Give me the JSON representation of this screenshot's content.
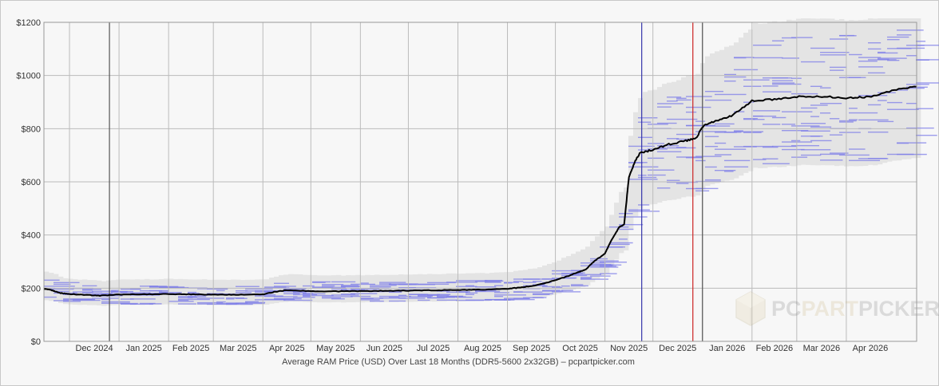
{
  "chart_data": {
    "type": "line",
    "xlabel": "Average RAM Price (USD) Over Last 18 Months (DDR5-5600 2x32GB) – pcpartpicker.com",
    "ylabel": "",
    "ylim": [
      0,
      1200
    ],
    "y_ticks": [
      0,
      200,
      400,
      600,
      800,
      1000,
      1200
    ],
    "y_tick_labels": [
      "$0",
      "$200",
      "$400",
      "$600",
      "$800",
      "$1000",
      "$1200"
    ],
    "x_range": [
      "2024-11-15",
      "2026-05-15"
    ],
    "x_tick_labels": [
      {
        "date": "2024-12-01",
        "label": "Dec 2024"
      },
      {
        "date": "2025-01-01",
        "label": "Jan 2025"
      },
      {
        "date": "2025-02-01",
        "label": "Feb 2025"
      },
      {
        "date": "2025-03-01",
        "label": "Mar 2025"
      },
      {
        "date": "2025-04-01",
        "label": "Apr 2025"
      },
      {
        "date": "2025-05-01",
        "label": "May 2025"
      },
      {
        "date": "2025-06-01",
        "label": "Jun 2025"
      },
      {
        "date": "2025-07-01",
        "label": "Jul 2025"
      },
      {
        "date": "2025-08-01",
        "label": "Aug 2025"
      },
      {
        "date": "2025-09-01",
        "label": "Sep 2025"
      },
      {
        "date": "2025-10-01",
        "label": "Oct 2025"
      },
      {
        "date": "2025-11-01",
        "label": "Nov 2025"
      },
      {
        "date": "2025-12-01",
        "label": "Dec 2025"
      },
      {
        "date": "2026-01-01",
        "label": "Jan 2026"
      },
      {
        "date": "2026-02-01",
        "label": "Feb 2026"
      },
      {
        "date": "2026-03-01",
        "label": "Mar 2026"
      },
      {
        "date": "2026-04-01",
        "label": "Apr 2026"
      }
    ],
    "grid": true,
    "reference_lines": [
      {
        "date": "2024-12-26",
        "color": "#555555"
      },
      {
        "date": "2025-11-24",
        "color": "#3333aa"
      },
      {
        "date": "2025-12-26",
        "color": "#cc2222"
      },
      {
        "date": "2026-01-01",
        "color": "#555555"
      }
    ],
    "series": [
      {
        "color": "#000000",
        "x": [
          "2024-11-15",
          "2024-11-20",
          "2024-11-25",
          "2024-12-01",
          "2024-12-10",
          "2024-12-20",
          "2025-01-01",
          "2025-01-15",
          "2025-02-01",
          "2025-02-15",
          "2025-03-01",
          "2025-03-15",
          "2025-04-01",
          "2025-04-08",
          "2025-04-15",
          "2025-05-01",
          "2025-05-15",
          "2025-06-01",
          "2025-06-15",
          "2025-07-01",
          "2025-07-15",
          "2025-08-01",
          "2025-08-15",
          "2025-09-01",
          "2025-09-10",
          "2025-09-20",
          "2025-10-01",
          "2025-10-10",
          "2025-10-15",
          "2025-10-20",
          "2025-10-25",
          "2025-11-01",
          "2025-11-05",
          "2025-11-10",
          "2025-11-13",
          "2025-11-16",
          "2025-11-20",
          "2025-11-23",
          "2025-12-01",
          "2025-12-10",
          "2025-12-20",
          "2025-12-28",
          "2026-01-02",
          "2026-01-10",
          "2026-01-20",
          "2026-02-01",
          "2026-02-15",
          "2026-03-01",
          "2026-03-15",
          "2026-04-01",
          "2026-04-15",
          "2026-05-01",
          "2026-05-15"
        ],
        "y": [
          198,
          192,
          182,
          178,
          175,
          172,
          176,
          177,
          178,
          177,
          176,
          175,
          176,
          186,
          192,
          189,
          188,
          189,
          190,
          191,
          192,
          193,
          194,
          198,
          203,
          212,
          230,
          248,
          260,
          270,
          300,
          330,
          380,
          430,
          440,
          620,
          680,
          710,
          720,
          740,
          752,
          765,
          815,
          830,
          850,
          905,
          910,
          920,
          922,
          915,
          920,
          945,
          958
        ]
      }
    ]
  },
  "watermark": {
    "part1": "PC",
    "part2": "PART",
    "part3": "PICKER"
  },
  "colors": {
    "average_line": "#000000",
    "price_range_band": "#e4e4e4",
    "individual_prices": "#7d7de8",
    "grid": "#bbbbbb",
    "background": "#f7f7f7"
  }
}
